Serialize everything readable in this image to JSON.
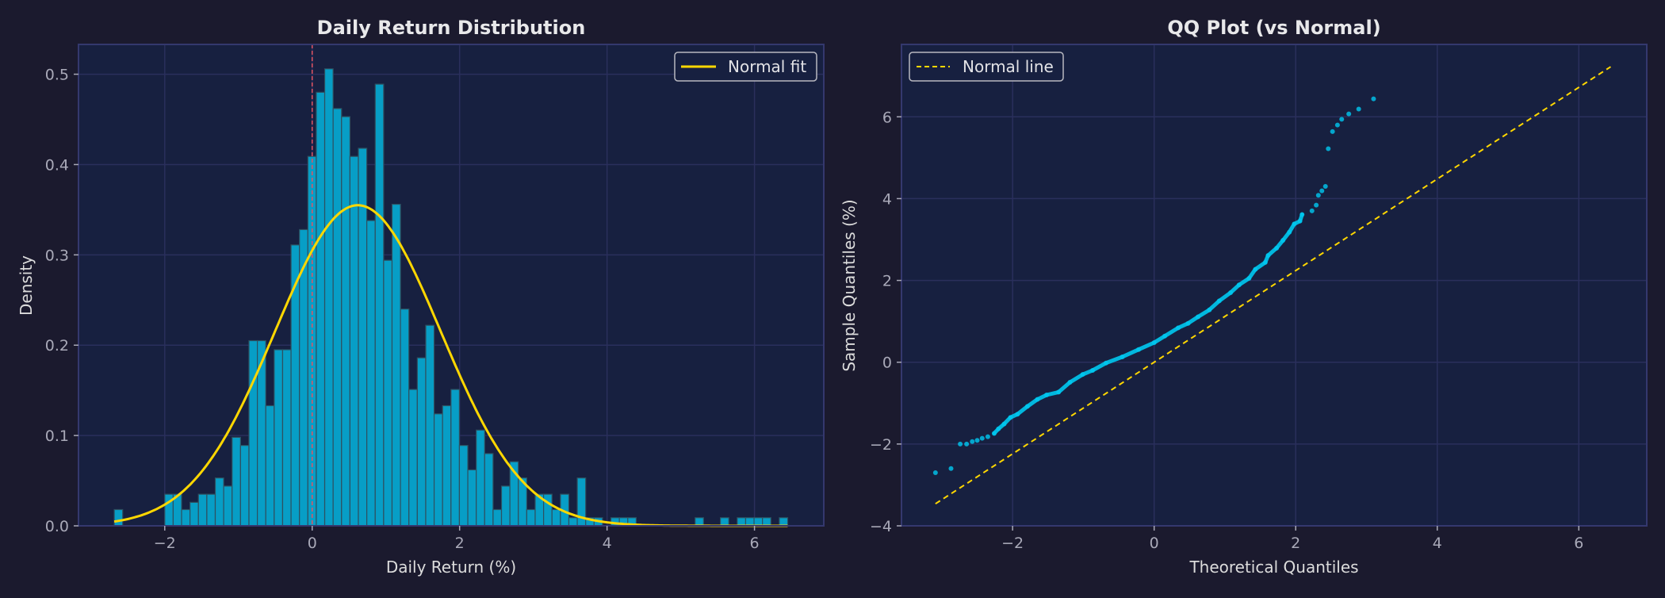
{
  "colors": {
    "background": "#1b1a2e",
    "axes_background": "#172040",
    "grid": "#2a2f5c",
    "spine": "#34386e",
    "bars": "#079ec6",
    "bar_edge": "#2e5060",
    "normal_curve": "#ffd700",
    "zero_line": "#e05565",
    "qq_points": "#00c8f0"
  },
  "chart_data": [
    {
      "type": "bar",
      "title": "Daily Return Distribution",
      "xlabel": "Daily Return (%)",
      "ylabel": "Density",
      "xlim": [
        -3.17,
        6.94
      ],
      "ylim": [
        0,
        0.533
      ],
      "xticks": [
        -2,
        0,
        2,
        4,
        6
      ],
      "xtick_labels": [
        "−2",
        "0",
        "2",
        "4",
        "6"
      ],
      "yticks": [
        0,
        0.1,
        0.2,
        0.3,
        0.4,
        0.5
      ],
      "ytick_labels": [
        "0.0",
        "0.1",
        "0.2",
        "0.3",
        "0.4",
        "0.5"
      ],
      "grid": true,
      "legend": {
        "placement": "top-right",
        "entries": [
          "Normal fit"
        ]
      },
      "bin_start": -2.685,
      "bin_width": 0.1142,
      "densities": [
        0.018,
        0,
        0,
        0,
        0,
        0,
        0.035,
        0.035,
        0.018,
        0.026,
        0.035,
        0.035,
        0.053,
        0.044,
        0.098,
        0.089,
        0.205,
        0.205,
        0.133,
        0.195,
        0.195,
        0.311,
        0.328,
        0.409,
        0.48,
        0.506,
        0.462,
        0.453,
        0.409,
        0.418,
        0.338,
        0.489,
        0.294,
        0.356,
        0.24,
        0.151,
        0.186,
        0.222,
        0.124,
        0.133,
        0.151,
        0.089,
        0.062,
        0.106,
        0.08,
        0.018,
        0.044,
        0.071,
        0.053,
        0.018,
        0.035,
        0.035,
        0.018,
        0.035,
        0.009,
        0.053,
        0.009,
        0.009,
        0,
        0.009,
        0.009,
        0.009,
        0,
        0,
        0,
        0,
        0,
        0,
        0,
        0.009,
        0,
        0,
        0.009,
        0,
        0.009,
        0.009,
        0.009,
        0.009,
        0,
        0.009
      ],
      "normal_fit": {
        "name": "Normal fit",
        "mean": 0.62,
        "std": 1.124,
        "x_range": [
          -2.685,
          6.45
        ]
      },
      "reference_line": {
        "x": 0,
        "style": "dashed"
      }
    },
    {
      "type": "scatter",
      "title": "QQ Plot (vs Normal)",
      "xlabel": "Theoretical Quantiles",
      "ylabel": "Sample Quantiles (%)",
      "xlim": [
        -3.57,
        6.96
      ],
      "ylim": [
        -4,
        7.77
      ],
      "xticks": [
        -2,
        0,
        2,
        4,
        6
      ],
      "xtick_labels": [
        "−2",
        "0",
        "2",
        "4",
        "6"
      ],
      "yticks": [
        -4,
        -2,
        0,
        2,
        4,
        6
      ],
      "ytick_labels": [
        "−4",
        "−2",
        "0",
        "2",
        "4",
        "6"
      ],
      "grid": true,
      "legend": {
        "placement": "top-left",
        "entries": [
          "Normal line"
        ]
      },
      "normal_line": {
        "name": "Normal line",
        "slope": 1.12,
        "intercept": 0,
        "x_range": [
          -3.09,
          6.45
        ],
        "style": "dashed"
      },
      "points": [
        [
          -3.09,
          -2.7
        ],
        [
          -2.87,
          -2.6
        ],
        [
          -2.74,
          -2.0
        ],
        [
          -2.65,
          -2.0
        ],
        [
          -2.57,
          -1.94
        ],
        [
          -2.5,
          -1.91
        ],
        [
          -2.43,
          -1.86
        ],
        [
          -2.35,
          -1.82
        ],
        [
          -2.26,
          -1.74
        ],
        [
          -2.2,
          -1.63
        ],
        [
          -2.12,
          -1.51
        ],
        [
          -2.03,
          -1.35
        ],
        [
          -1.93,
          -1.27
        ],
        [
          -1.79,
          -1.08
        ],
        [
          -1.65,
          -0.91
        ],
        [
          -1.52,
          -0.8
        ],
        [
          -1.35,
          -0.73
        ],
        [
          -1.19,
          -0.49
        ],
        [
          -1.01,
          -0.3
        ],
        [
          -0.87,
          -0.2
        ],
        [
          -0.68,
          -0.02
        ],
        [
          -0.45,
          0.13
        ],
        [
          -0.22,
          0.31
        ],
        [
          0,
          0.48
        ],
        [
          0.15,
          0.64
        ],
        [
          0.34,
          0.84
        ],
        [
          0.48,
          0.95
        ],
        [
          0.62,
          1.11
        ],
        [
          0.78,
          1.28
        ],
        [
          0.92,
          1.5
        ],
        [
          1.08,
          1.7
        ],
        [
          1.2,
          1.89
        ],
        [
          1.34,
          2.05
        ],
        [
          1.43,
          2.27
        ],
        [
          1.57,
          2.44
        ],
        [
          1.61,
          2.61
        ],
        [
          1.73,
          2.79
        ],
        [
          1.82,
          2.98
        ],
        [
          1.91,
          3.18
        ],
        [
          1.98,
          3.38
        ],
        [
          2.06,
          3.45
        ],
        [
          2.09,
          3.61
        ],
        [
          2.23,
          3.7
        ],
        [
          2.29,
          3.84
        ],
        [
          2.32,
          4.08
        ],
        [
          2.37,
          4.19
        ],
        [
          2.42,
          4.3
        ],
        [
          2.46,
          5.22
        ],
        [
          2.52,
          5.64
        ],
        [
          2.59,
          5.8
        ],
        [
          2.65,
          5.94
        ],
        [
          2.75,
          6.07
        ],
        [
          2.89,
          6.19
        ],
        [
          3.1,
          6.44
        ]
      ]
    }
  ]
}
